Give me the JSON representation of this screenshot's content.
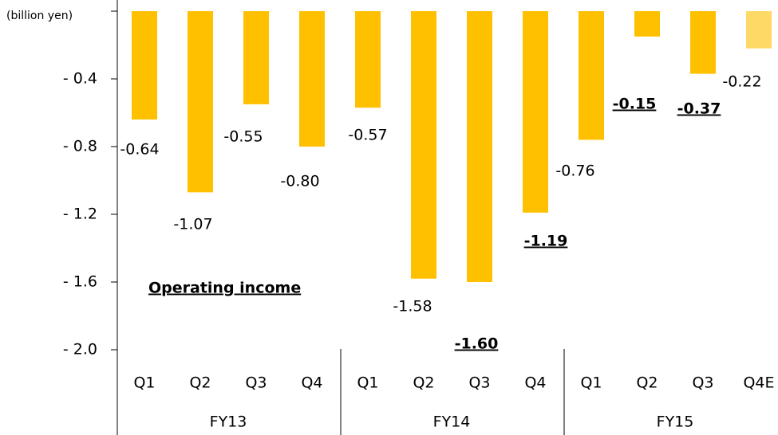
{
  "chart_data": {
    "type": "bar",
    "title": "Operating income",
    "y_axis_label": "(billion yen)",
    "categories": [
      "Q1",
      "Q2",
      "Q3",
      "Q4",
      "Q1",
      "Q2",
      "Q3",
      "Q4",
      "Q1",
      "Q2",
      "Q3",
      "Q4E"
    ],
    "groups": [
      {
        "label": "FY13",
        "size": 4
      },
      {
        "label": "FY14",
        "size": 4
      },
      {
        "label": "FY15",
        "size": 4
      }
    ],
    "values": [
      -0.64,
      -1.07,
      -0.55,
      -0.8,
      -0.57,
      -1.58,
      -1.6,
      -1.19,
      -0.76,
      -0.15,
      -0.37,
      -0.22
    ],
    "value_labels": [
      "-0.64",
      "-1.07",
      "-0.55",
      "-0.80",
      "-0.57",
      "-1.58",
      "-1.60",
      "-1.19",
      "-0.76",
      "-0.15",
      "-0.37",
      "-0.22"
    ],
    "colors": [
      "#ffc000",
      "#ffc000",
      "#ffc000",
      "#ffc000",
      "#ffc000",
      "#ffc000",
      "#ffc000",
      "#ffc000",
      "#ffc000",
      "#ffc000",
      "#ffc000",
      "#ffd966"
    ],
    "ylim": [
      -2.0,
      0
    ],
    "yticks": [
      {
        "value": -0.4,
        "label": "- 0.4"
      },
      {
        "value": -0.8,
        "label": "- 0.8"
      },
      {
        "value": -1.2,
        "label": "- 1.2"
      },
      {
        "value": -1.6,
        "label": "- 1.6"
      },
      {
        "value": -2.0,
        "label": "- 2.0"
      }
    ]
  }
}
